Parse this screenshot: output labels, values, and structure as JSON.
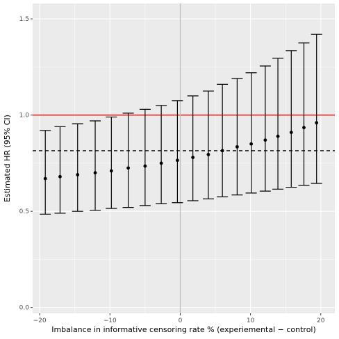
{
  "chart_data": {
    "type": "scatter",
    "title": "",
    "xlabel": "Imbalance in informative censoring rate % (experiemental − control)",
    "ylabel": "Estimated HR (95% CI)",
    "xlim": [
      -21,
      22
    ],
    "ylim": [
      -0.03,
      1.58
    ],
    "x_ticks": [
      -20,
      -10,
      0,
      10,
      20
    ],
    "x_tick_labels": [
      "−20",
      "−10",
      "0",
      "10",
      "20"
    ],
    "y_ticks": [
      0.0,
      0.5,
      1.0,
      1.5
    ],
    "y_tick_labels": [
      "0.0",
      "0.5",
      "1.0",
      "1.5"
    ],
    "grid": true,
    "points": [
      {
        "x": -19.2,
        "est": 0.67,
        "lower": 0.485,
        "upper": 0.92
      },
      {
        "x": -17.1,
        "est": 0.68,
        "lower": 0.49,
        "upper": 0.94
      },
      {
        "x": -14.6,
        "est": 0.69,
        "lower": 0.5,
        "upper": 0.955
      },
      {
        "x": -12.1,
        "est": 0.7,
        "lower": 0.505,
        "upper": 0.97
      },
      {
        "x": -9.8,
        "est": 0.71,
        "lower": 0.515,
        "upper": 0.99
      },
      {
        "x": -7.4,
        "est": 0.725,
        "lower": 0.52,
        "upper": 1.01
      },
      {
        "x": -5.0,
        "est": 0.735,
        "lower": 0.53,
        "upper": 1.03
      },
      {
        "x": -2.7,
        "est": 0.75,
        "lower": 0.54,
        "upper": 1.05
      },
      {
        "x": -0.4,
        "est": 0.765,
        "lower": 0.545,
        "upper": 1.075
      },
      {
        "x": 1.8,
        "est": 0.78,
        "lower": 0.555,
        "upper": 1.1
      },
      {
        "x": 4.0,
        "est": 0.795,
        "lower": 0.565,
        "upper": 1.125
      },
      {
        "x": 6.0,
        "est": 0.815,
        "lower": 0.575,
        "upper": 1.16
      },
      {
        "x": 8.1,
        "est": 0.835,
        "lower": 0.585,
        "upper": 1.19
      },
      {
        "x": 10.1,
        "est": 0.85,
        "lower": 0.595,
        "upper": 1.22
      },
      {
        "x": 12.1,
        "est": 0.87,
        "lower": 0.605,
        "upper": 1.255
      },
      {
        "x": 13.9,
        "est": 0.89,
        "lower": 0.615,
        "upper": 1.295
      },
      {
        "x": 15.8,
        "est": 0.91,
        "lower": 0.625,
        "upper": 1.335
      },
      {
        "x": 17.6,
        "est": 0.935,
        "lower": 0.635,
        "upper": 1.375
      },
      {
        "x": 19.4,
        "est": 0.96,
        "lower": 0.645,
        "upper": 1.42
      }
    ],
    "reference_lines": [
      {
        "axis": "y",
        "value": 1.0,
        "style": "solid",
        "color": "#ff0000"
      },
      {
        "axis": "y",
        "value": 0.815,
        "style": "dashed",
        "color": "#000000"
      },
      {
        "axis": "x",
        "value": 0,
        "style": "solid",
        "color": "#bebebe"
      }
    ],
    "colors": {
      "panel_background": "#ebebeb",
      "grid_major": "#ffffff",
      "points": "#000000"
    }
  }
}
